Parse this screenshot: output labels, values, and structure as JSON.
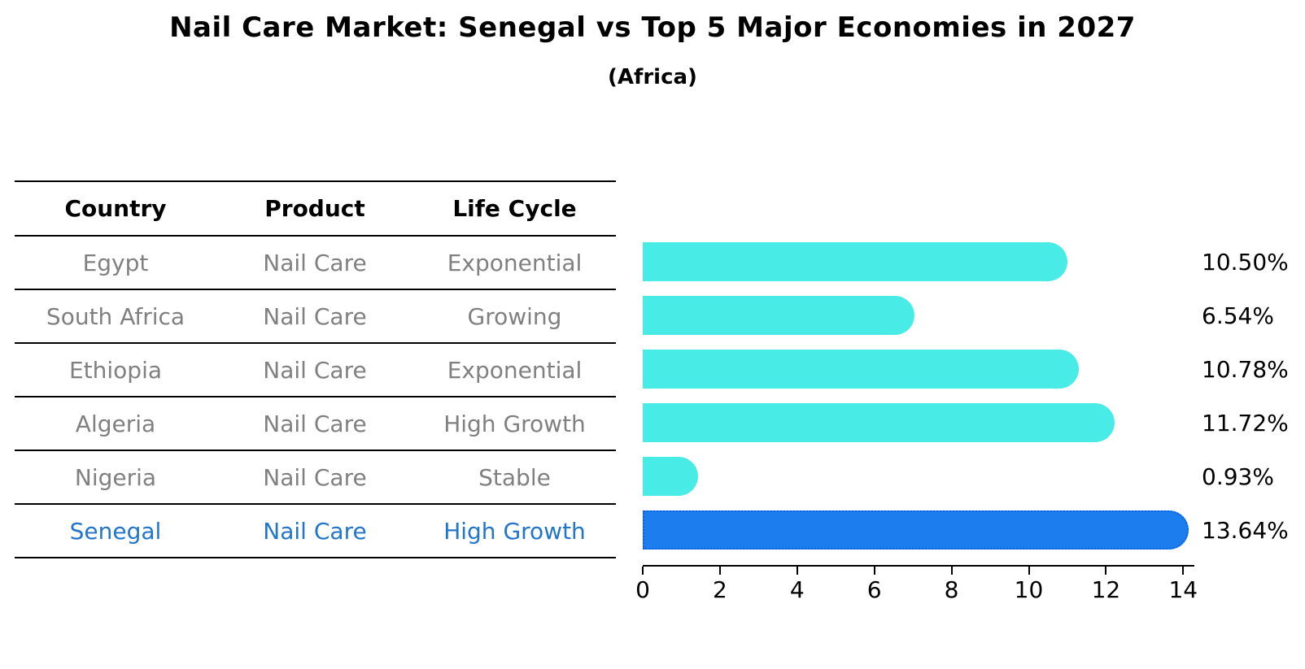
{
  "title": "Nail Care Market: Senegal vs Top 5 Major Economies in 2027",
  "subtitle": "(Africa)",
  "table": {
    "headers": [
      "Country",
      "Product",
      "Life Cycle"
    ],
    "rows": [
      {
        "country": "Egypt",
        "product": "Nail Care",
        "life_cycle": "Exponential",
        "highlighted": false
      },
      {
        "country": "South Africa",
        "product": "Nail Care",
        "life_cycle": "Growing",
        "highlighted": false
      },
      {
        "country": "Ethiopia",
        "product": "Nail Care",
        "life_cycle": "Exponential",
        "highlighted": false
      },
      {
        "country": "Algeria",
        "product": "Nail Care",
        "life_cycle": "High Growth",
        "highlighted": false
      },
      {
        "country": "Nigeria",
        "product": "Nail Care",
        "life_cycle": "Stable",
        "highlighted": false
      },
      {
        "country": "Senegal",
        "product": "Nail Care",
        "life_cycle": "High Growth",
        "highlighted": true
      }
    ]
  },
  "chart_data": {
    "type": "bar",
    "orientation": "horizontal",
    "title": "Nail Care Market: Senegal vs Top 5 Major Economies in 2027",
    "subtitle": "(Africa)",
    "categories": [
      "Egypt",
      "South Africa",
      "Ethiopia",
      "Algeria",
      "Nigeria",
      "Senegal"
    ],
    "values": [
      10.5,
      6.54,
      10.78,
      11.72,
      0.93,
      13.64
    ],
    "value_labels": [
      "10.50%",
      "6.54%",
      "10.78%",
      "11.72%",
      "0.93%",
      "13.64%"
    ],
    "x_ticks": [
      0,
      2,
      4,
      6,
      8,
      10,
      12,
      14
    ],
    "xlim": [
      0,
      14
    ],
    "grid": false,
    "legend": false,
    "highlight_index": 5,
    "colors": {
      "bar": "#48EBE6",
      "highlight_bar": "#1C7DEF",
      "highlight_border": "#0E62D9",
      "highlight_text": "#2176CB",
      "body_text": "#808080",
      "axis": "#000000"
    }
  }
}
